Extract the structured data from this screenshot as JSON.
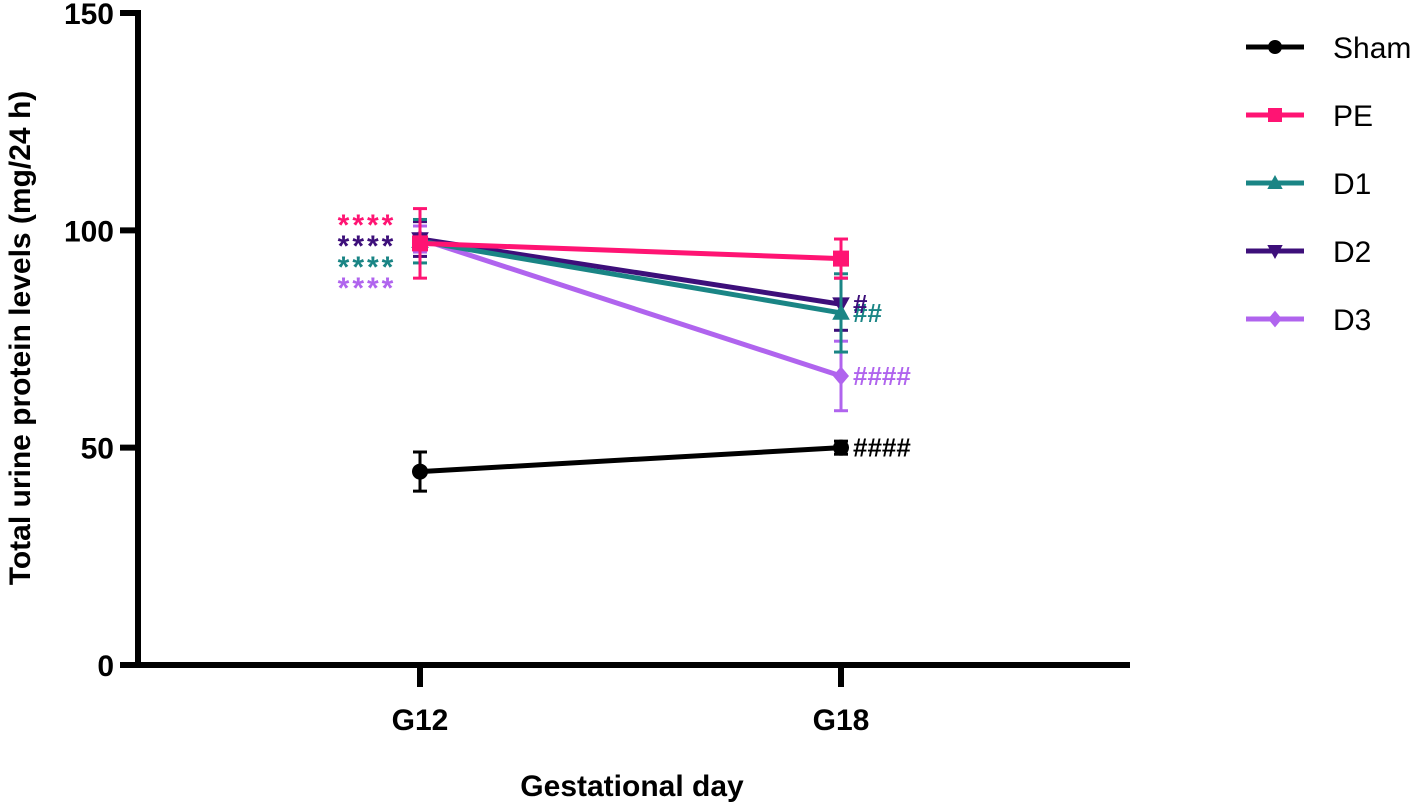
{
  "chart_data": {
    "type": "line",
    "title": "",
    "xlabel": "Gestational day",
    "ylabel": "Total urine protein levels (mg/24 h)",
    "categories": [
      "G12",
      "G18"
    ],
    "ylim": [
      0,
      150
    ],
    "yticks": [
      0,
      50,
      100,
      150
    ],
    "grid": false,
    "legend_placement": "top-right, outside plot",
    "series": [
      {
        "name": "Sham",
        "color": "#000000",
        "marker": "circle",
        "values": [
          44.5,
          50
        ],
        "errors": [
          4.5,
          1.5
        ],
        "annotations": [
          "",
          "####"
        ]
      },
      {
        "name": "PE",
        "color": "#ff1473",
        "marker": "square",
        "values": [
          97,
          93.5
        ],
        "errors": [
          8,
          4.5
        ],
        "annotations": [
          "****",
          ""
        ]
      },
      {
        "name": "D1",
        "color": "#1a8585",
        "marker": "triangle-up",
        "values": [
          97.5,
          81
        ],
        "errors": [
          5,
          9
        ],
        "annotations": [
          "****",
          "##"
        ]
      },
      {
        "name": "D2",
        "color": "#3d0f7a",
        "marker": "triangle-down",
        "values": [
          98,
          83
        ],
        "errors": [
          4,
          6
        ],
        "annotations": [
          "****",
          "#"
        ]
      },
      {
        "name": "D3",
        "color": "#b064ee",
        "marker": "diamond",
        "values": [
          98,
          66.5
        ],
        "errors": [
          3,
          8
        ],
        "annotations": [
          "****",
          "####"
        ]
      }
    ]
  }
}
